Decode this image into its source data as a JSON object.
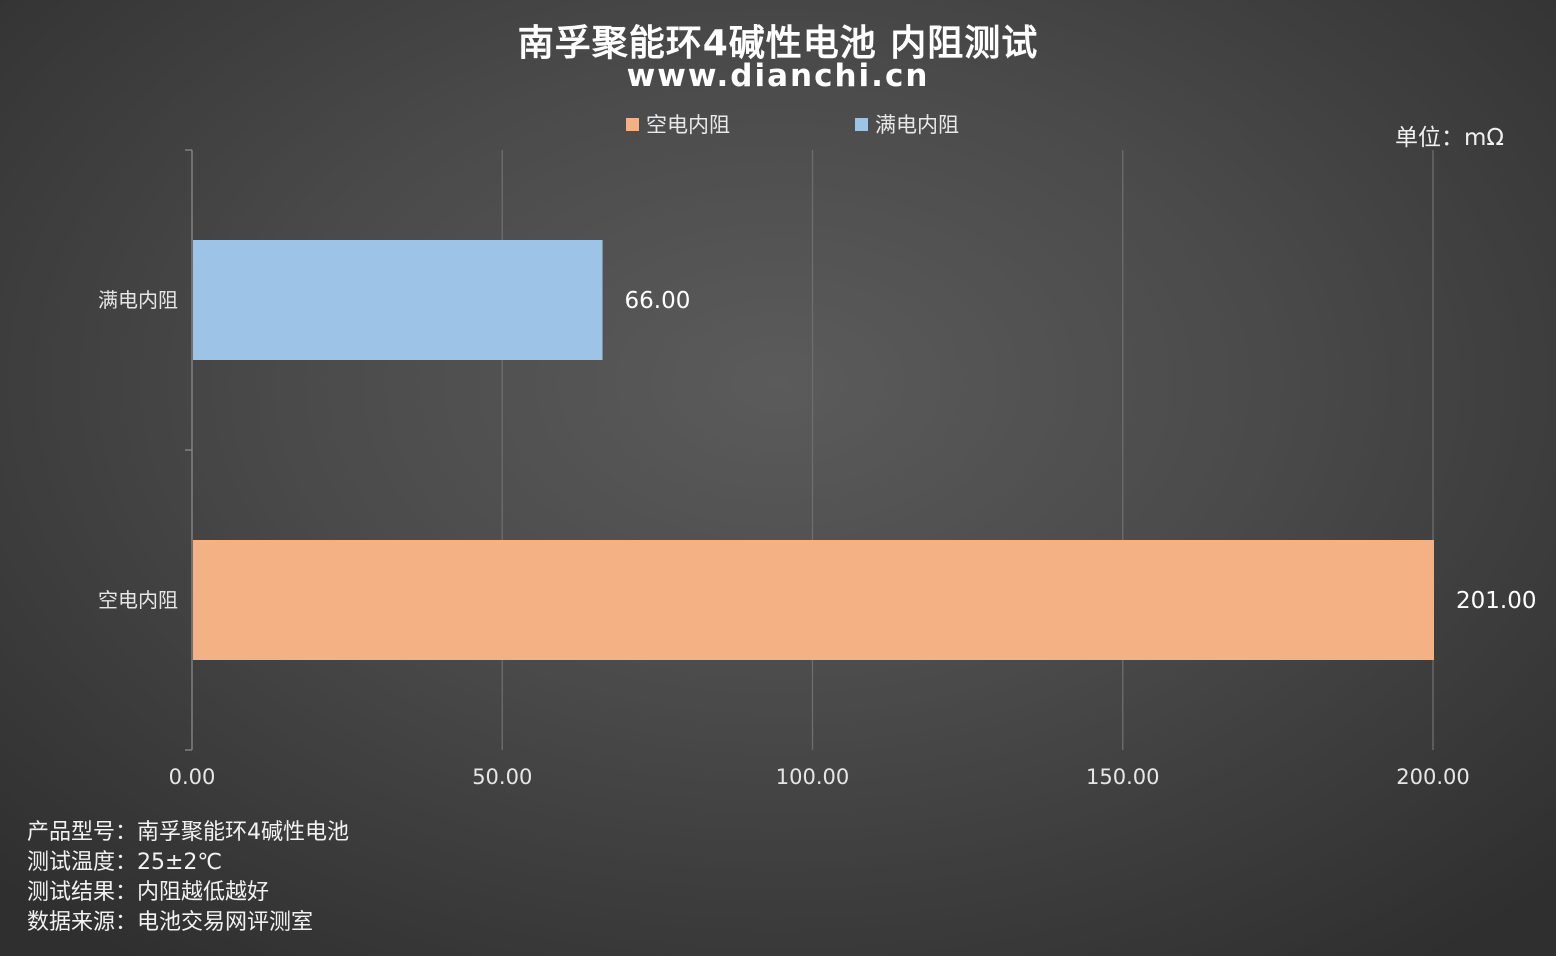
{
  "header": {
    "title": "南孚聚能环4碱性电池 内阻测试",
    "subtitle": "www.dianchi.cn",
    "unit": "单位：mΩ"
  },
  "chart_data": {
    "type": "bar",
    "orientation": "horizontal",
    "categories": [
      "满电内阻",
      "空电内阻"
    ],
    "series": [
      {
        "name": "空电内阻",
        "category": "空电内阻",
        "value": 201.0,
        "label": "201.00",
        "color": "#f4b183"
      },
      {
        "name": "满电内阻",
        "category": "满电内阻",
        "value": 66.0,
        "label": "66.00",
        "color": "#9dc3e6"
      }
    ],
    "legend": [
      {
        "name": "空电内阻",
        "color": "#f4b183"
      },
      {
        "name": "满电内阻",
        "color": "#9dc3e6"
      }
    ],
    "legend_position": "top-center",
    "xlim": [
      0,
      200
    ],
    "x_ticks": [
      0,
      50,
      100,
      150,
      200
    ],
    "x_tick_labels": [
      "0.00",
      "50.00",
      "100.00",
      "150.00",
      "200.00"
    ],
    "grid": "vertical",
    "gridline_color": "#6e6e6e"
  },
  "info": {
    "lines": [
      "产品型号：南孚聚能环4碱性电池",
      "测试温度：25±2℃",
      "测试结果：内阻越低越好",
      "数据来源：电池交易网评测室"
    ]
  }
}
